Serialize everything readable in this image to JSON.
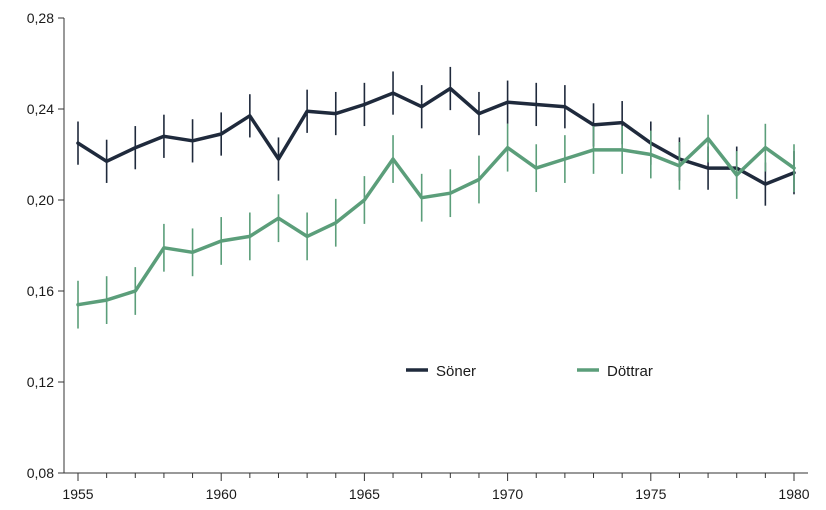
{
  "chart_data": {
    "type": "line",
    "title": "",
    "xlabel": "",
    "ylabel": "",
    "x": [
      1955,
      1956,
      1957,
      1958,
      1959,
      1960,
      1961,
      1962,
      1963,
      1964,
      1965,
      1966,
      1967,
      1968,
      1969,
      1970,
      1971,
      1972,
      1973,
      1974,
      1975,
      1976,
      1977,
      1978,
      1979,
      1980
    ],
    "xlim": [
      1955,
      1980
    ],
    "ylim": [
      0.08,
      0.28
    ],
    "x_ticks": [
      1955,
      1960,
      1965,
      1970,
      1975,
      1980
    ],
    "x_tick_labels": [
      "1955",
      "1960",
      "1965",
      "1970",
      "1975",
      "1980"
    ],
    "y_ticks": [
      0.08,
      0.12,
      0.16,
      0.2,
      0.24,
      0.28
    ],
    "y_tick_labels": [
      "0,08",
      "0,12",
      "0,16",
      "0,20",
      "0,24",
      "0,28"
    ],
    "grid": false,
    "legend_position": "center-bottom",
    "series": [
      {
        "name": "Söner",
        "color": "#1f2a3c",
        "values": [
          0.225,
          0.217,
          0.223,
          0.228,
          0.226,
          0.229,
          0.237,
          0.218,
          0.239,
          0.238,
          0.242,
          0.247,
          0.241,
          0.249,
          0.238,
          0.243,
          0.242,
          0.241,
          0.233,
          0.234,
          0.225,
          0.218,
          0.214,
          0.214,
          0.207,
          0.212
        ],
        "error": 0.0095
      },
      {
        "name": "Döttrar",
        "color": "#5b9e7a",
        "values": [
          0.154,
          0.156,
          0.16,
          0.179,
          0.177,
          0.182,
          0.184,
          0.192,
          0.184,
          0.19,
          0.2,
          0.218,
          0.201,
          0.203,
          0.209,
          0.223,
          0.214,
          0.218,
          0.222,
          0.222,
          0.22,
          0.215,
          0.227,
          0.211,
          0.223,
          0.214
        ],
        "error": 0.0105
      }
    ]
  }
}
